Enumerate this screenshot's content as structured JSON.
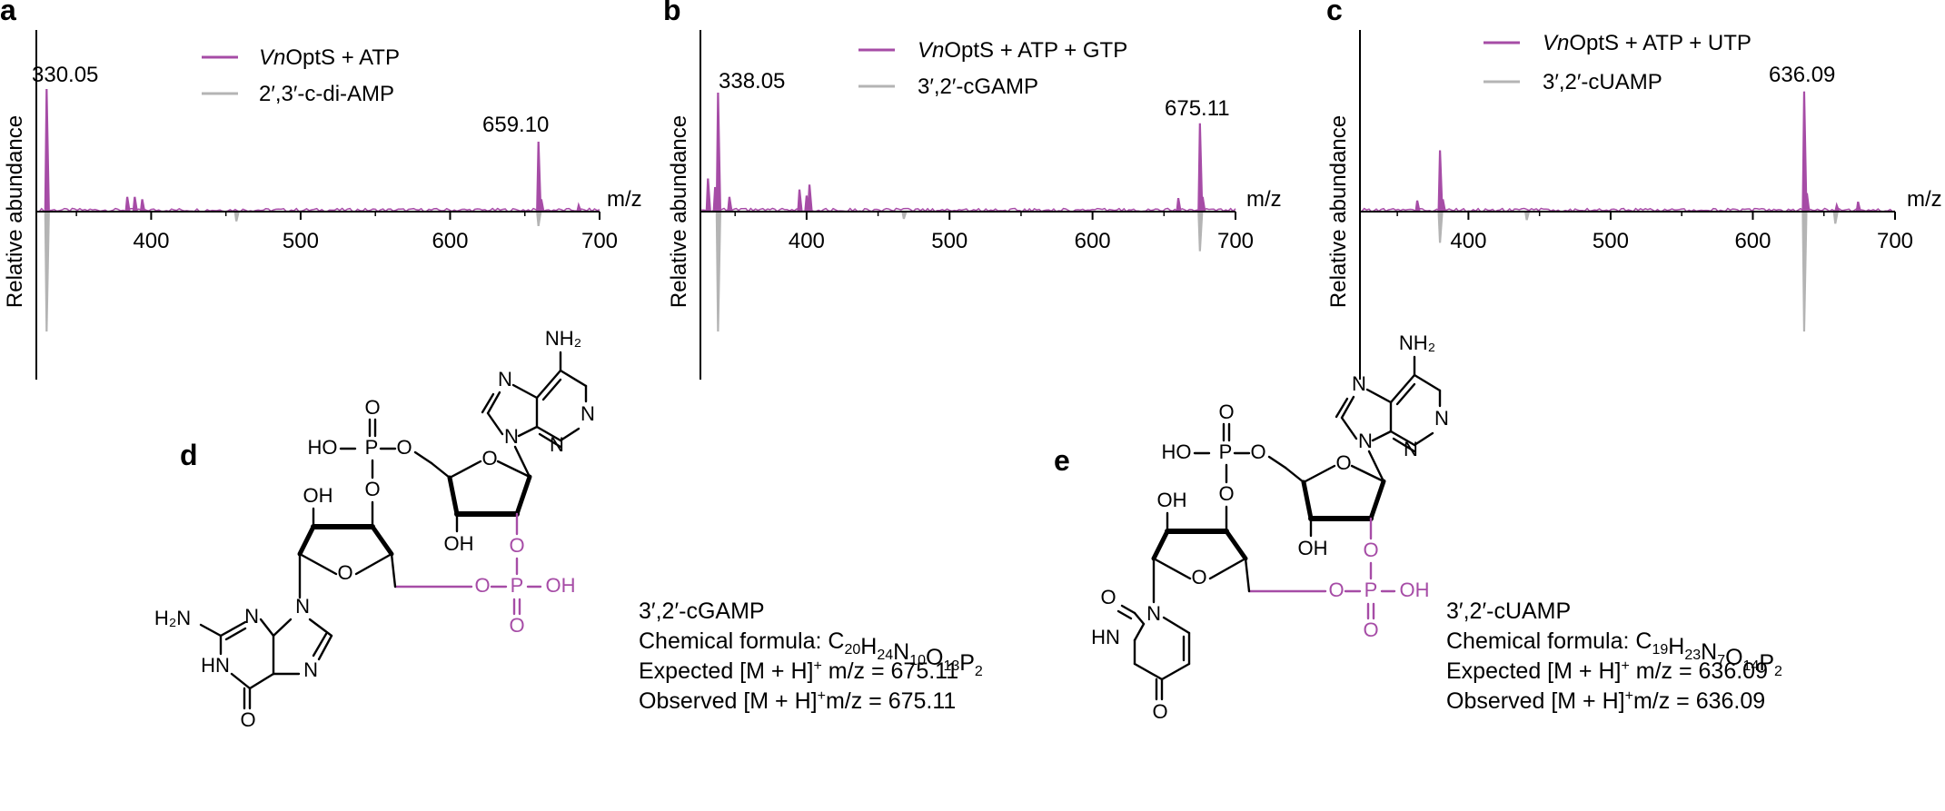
{
  "colors": {
    "sample": "#a64ca6",
    "standard": "#b4b4b4",
    "axis": "#000000"
  },
  "chart_data": [
    {
      "type": "line",
      "panel": "a",
      "xlabel": "m/z",
      "ylabel": "Relative abundance",
      "xlim": [
        325,
        700
      ],
      "xticks": [
        "400",
        "500",
        "600",
        "700"
      ],
      "series": [
        {
          "name": "VnOptS + ATP",
          "name_italic": "Vn",
          "name_rest": "OptS + ATP",
          "peaks": [
            [
              330.05,
              1.0
            ],
            [
              384,
              0.12
            ],
            [
              389,
              0.12
            ],
            [
              394,
              0.1
            ],
            [
              659.1,
              0.57
            ],
            [
              661,
              0.1
            ],
            [
              686,
              0.05
            ]
          ]
        },
        {
          "name": "2′,3′-c-di-AMP",
          "peaks": [
            [
              330.05,
              -1.0
            ],
            [
              457,
              -0.08
            ],
            [
              659.1,
              -0.12
            ]
          ]
        }
      ],
      "annotations": [
        "330.05",
        "659.10"
      ]
    },
    {
      "type": "line",
      "panel": "b",
      "xlabel": "m/z",
      "ylabel": "Relative abundance",
      "xlim": [
        327,
        700
      ],
      "xticks": [
        "400",
        "500",
        "600",
        "700"
      ],
      "series": [
        {
          "name": "VnOptS + ATP + GTP",
          "name_italic": "Vn",
          "name_rest": "OptS + ATP + GTP",
          "peaks": [
            [
              331,
              0.27
            ],
            [
              336,
              0.2
            ],
            [
              338.05,
              0.97
            ],
            [
              346,
              0.12
            ],
            [
              395,
              0.18
            ],
            [
              400,
              0.13
            ],
            [
              402,
              0.22
            ],
            [
              660,
              0.11
            ],
            [
              675.11,
              0.72
            ],
            [
              677,
              0.12
            ]
          ]
        },
        {
          "name": "3′,2′-cGAMP",
          "peaks": [
            [
              338.05,
              -1.0
            ],
            [
              468,
              -0.06
            ],
            [
              675.11,
              -0.33
            ]
          ]
        }
      ],
      "annotations": [
        "338.05",
        "675.11"
      ]
    },
    {
      "type": "line",
      "panel": "c",
      "xlabel": "m/z",
      "ylabel": "Relative abundance",
      "xlim": [
        325,
        700
      ],
      "xticks": [
        "400",
        "500",
        "600",
        "700"
      ],
      "series": [
        {
          "name": "VnOptS + ATP + UTP",
          "name_italic": "Vn",
          "name_rest": "OptS + ATP + UTP",
          "peaks": [
            [
              364,
              0.09
            ],
            [
              380,
              0.5
            ],
            [
              382,
              0.1
            ],
            [
              636.09,
              0.98
            ],
            [
              638,
              0.15
            ],
            [
              659,
              0.05
            ],
            [
              674,
              0.08
            ]
          ]
        },
        {
          "name": "3′,2′-cUAMP",
          "peaks": [
            [
              380,
              -0.26
            ],
            [
              441,
              -0.07
            ],
            [
              636.09,
              -1.0
            ],
            [
              658,
              -0.1
            ]
          ]
        }
      ],
      "annotations": [
        "636.09"
      ]
    }
  ],
  "panels": {
    "a": "a",
    "b": "b",
    "c": "c",
    "d": "d",
    "e": "e"
  },
  "structure_labels": {
    "ho": "HO",
    "o": "O",
    "p": "P",
    "oh": "OH",
    "n": "N",
    "nh": "HN",
    "h2n": "H₂N",
    "nh2": "NH₂",
    "hn": "HN"
  },
  "info_d": {
    "name": "3′,2′-cGAMP",
    "formula_label": "Chemical formula: ",
    "formula": [
      [
        "C",
        "20"
      ],
      [
        "H",
        "24"
      ],
      [
        "N",
        "10"
      ],
      [
        "O",
        "13"
      ],
      [
        "P",
        "2"
      ]
    ],
    "expected_label": "Expected [M + H]",
    "expected_rest": " m/z = 675.11",
    "observed_label": "Observed [M + H]",
    "observed_rest": "m/z = 675.11",
    "plus": "+"
  },
  "info_e": {
    "name": "3′,2′-cUAMP",
    "formula_label": "Chemical formula: ",
    "formula": [
      [
        "C",
        "19"
      ],
      [
        "H",
        "23"
      ],
      [
        "N",
        "7"
      ],
      [
        "O",
        "14"
      ],
      [
        "P",
        "2"
      ]
    ],
    "expected_label": "Expected [M + H]",
    "expected_rest": " m/z = 636.09",
    "observed_label": "Observed [M + H]",
    "observed_rest": "m/z = 636.09",
    "plus": "+"
  }
}
